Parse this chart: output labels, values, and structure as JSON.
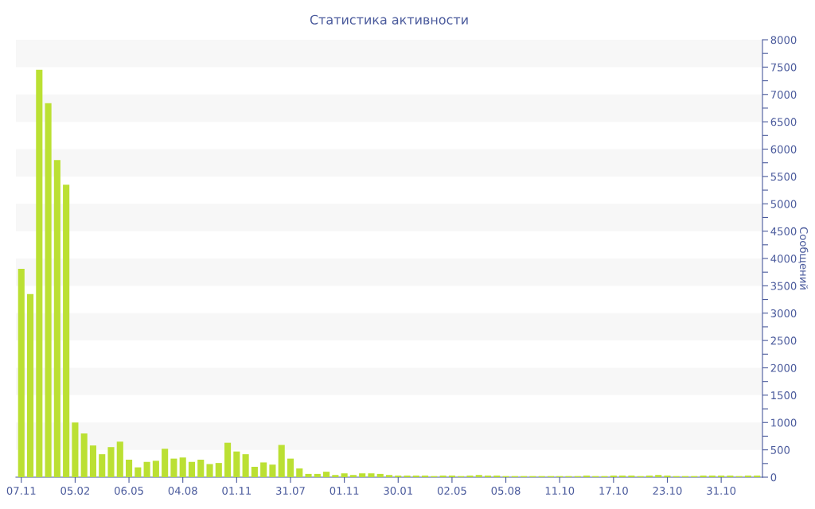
{
  "chart_data": {
    "type": "bar",
    "title": "Статистика активности",
    "ylabel": "Сообщений",
    "color": "#bbe033",
    "categories": [
      "07.11",
      null,
      null,
      null,
      null,
      null,
      "05.02",
      null,
      null,
      null,
      null,
      null,
      "06.05",
      null,
      null,
      null,
      null,
      null,
      "04.08",
      null,
      null,
      null,
      null,
      null,
      "01.11",
      null,
      null,
      null,
      null,
      null,
      "31.07",
      null,
      null,
      null,
      null,
      null,
      "01.11",
      null,
      null,
      null,
      null,
      null,
      "30.01",
      null,
      null,
      null,
      null,
      null,
      "02.05",
      null,
      null,
      null,
      null,
      null,
      "05.08",
      null,
      null,
      null,
      null,
      null,
      "11.10",
      null,
      null,
      null,
      null,
      null,
      "17.10",
      null,
      null,
      null,
      null,
      null,
      "23.10",
      null,
      null,
      null,
      null,
      null,
      "31.10",
      null,
      null,
      null,
      null
    ],
    "values": [
      3810,
      3350,
      7450,
      6840,
      5800,
      5350,
      1000,
      800,
      580,
      420,
      550,
      650,
      320,
      180,
      280,
      300,
      520,
      340,
      360,
      280,
      320,
      240,
      260,
      630,
      470,
      420,
      190,
      270,
      230,
      590,
      340,
      160,
      60,
      60,
      100,
      40,
      70,
      40,
      70,
      70,
      60,
      40,
      30,
      30,
      30,
      30,
      20,
      30,
      30,
      20,
      30,
      40,
      30,
      30,
      20,
      20,
      20,
      20,
      20,
      20,
      20,
      20,
      20,
      30,
      20,
      20,
      30,
      30,
      30,
      20,
      30,
      40,
      30,
      20,
      20,
      20,
      30,
      30,
      30,
      30,
      20,
      30,
      30
    ],
    "ylim": [
      0,
      8000
    ],
    "yticks": [
      0,
      {
        "value": 250,
        "label": null
      },
      500,
      {
        "value": 750,
        "label": null
      },
      1000,
      {
        "value": 1250,
        "label": null
      },
      1500,
      {
        "value": 1750,
        "label": null
      },
      2000,
      {
        "value": 2250,
        "label": null
      },
      2500,
      {
        "value": 2750,
        "label": null
      },
      3000,
      {
        "value": 3250,
        "label": null
      },
      3500,
      {
        "value": 3750,
        "label": null
      },
      4000,
      {
        "value": 4250,
        "label": null
      },
      4500,
      {
        "value": 4750,
        "label": null
      },
      5000,
      {
        "value": 5250,
        "label": null
      },
      5500,
      {
        "value": 5750,
        "label": null
      },
      6000,
      {
        "value": 6250,
        "label": null
      },
      6500,
      {
        "value": 6750,
        "label": null
      },
      7000,
      {
        "value": 7250,
        "label": null
      },
      7500,
      {
        "value": 7750,
        "label": null
      },
      8000
    ],
    "bands": [
      {
        "axis": "y",
        "from": 500,
        "to": 1000,
        "color": "#f7f7f7"
      },
      {
        "axis": "y",
        "from": 1500,
        "to": 2000,
        "color": "#f7f7f7"
      },
      {
        "axis": "y",
        "from": 2500,
        "to": 3000,
        "color": "#f7f7f7"
      },
      {
        "axis": "y",
        "from": 3500,
        "to": 4000,
        "color": "#f7f7f7"
      },
      {
        "axis": "y",
        "from": 4500,
        "to": 5000,
        "color": "#f7f7f7"
      },
      {
        "axis": "y",
        "from": 5500,
        "to": 6000,
        "color": "#f7f7f7"
      },
      {
        "axis": "y",
        "from": 6500,
        "to": 7000,
        "color": "#f7f7f7"
      },
      {
        "axis": "y",
        "from": 7500,
        "to": 8000,
        "color": "#f7f7f7"
      }
    ],
    "grid": false,
    "legend": false
  }
}
